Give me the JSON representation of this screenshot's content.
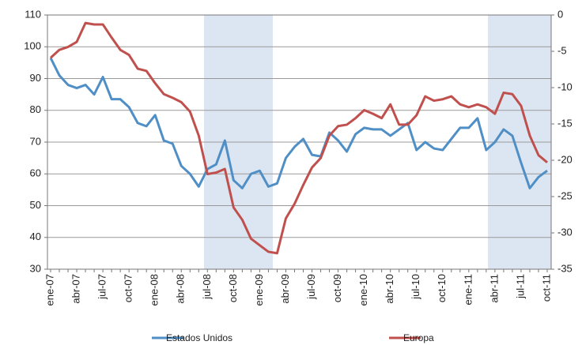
{
  "chart_data": {
    "type": "line",
    "categories": [
      "ene-07",
      null,
      null,
      "abr-07",
      null,
      null,
      "jul-07",
      null,
      null,
      "oct-07",
      null,
      null,
      "ene-08",
      null,
      null,
      "abr-08",
      null,
      null,
      "jul-08",
      null,
      null,
      "oct-08",
      null,
      null,
      "ene-09",
      null,
      null,
      "abr-09",
      null,
      null,
      "jul-09",
      null,
      null,
      "oct-09",
      null,
      null,
      "ene-10",
      null,
      null,
      "abr-10",
      null,
      null,
      "jul-10",
      null,
      null,
      "oct-10",
      null,
      null,
      "ene-11",
      null,
      null,
      "abr-11",
      null,
      null,
      "jul-11",
      null,
      null,
      "oct-11"
    ],
    "series": [
      {
        "name": "Estados Unidos",
        "color": "#4f8fc6",
        "axis": "y",
        "values": [
          96.5,
          91,
          88,
          87,
          88,
          85,
          90.5,
          83.5,
          83.5,
          81,
          76,
          75,
          78.5,
          70.5,
          69.5,
          62.5,
          60,
          56,
          61.5,
          63,
          70.5,
          58,
          55.5,
          60,
          61,
          56,
          57,
          65,
          68.5,
          71,
          66,
          65.5,
          73,
          70.5,
          67,
          72.5,
          74.5,
          74,
          74,
          72,
          74,
          76,
          67.5,
          70,
          68,
          67.5,
          71,
          74.5,
          74.5,
          77.5,
          67.5,
          70,
          74,
          72,
          63.5,
          55.5,
          59,
          61
        ]
      },
      {
        "name": "Europa",
        "color": "#c0504d",
        "axis": "y2",
        "values": [
          -5.9,
          -4.8,
          -4.4,
          -3.7,
          -1.1,
          -1.3,
          -1.3,
          -3.1,
          -4.8,
          -5.5,
          -7.4,
          -7.7,
          -9.4,
          -10.9,
          -11.4,
          -12,
          -13.3,
          -16.6,
          -21.9,
          -21.7,
          -21.2,
          -26.5,
          -28.2,
          -30.8,
          -31.7,
          -32.6,
          -32.8,
          -28,
          -26,
          -23.4,
          -21,
          -19.7,
          -16.6,
          -15.3,
          -15.1,
          -14.2,
          -13.1,
          -13.6,
          -14.2,
          -12.3,
          -15.1,
          -15.1,
          -13.8,
          -11.2,
          -11.8,
          -11.6,
          -11.2,
          -12.3,
          -12.7,
          -12.3,
          -12.7,
          -13.6,
          -10.7,
          -10.9,
          -12.5,
          -16.6,
          -19.3,
          -20.3
        ]
      }
    ],
    "ylim": [
      30,
      110
    ],
    "yticks": [
      30,
      40,
      50,
      60,
      70,
      80,
      90,
      100,
      110
    ],
    "y2lim": [
      -35,
      0
    ],
    "y2ticks": [
      -35,
      -30,
      -25,
      -20,
      -15,
      -10,
      -5,
      0
    ],
    "grid": true,
    "legend": "bottom"
  }
}
